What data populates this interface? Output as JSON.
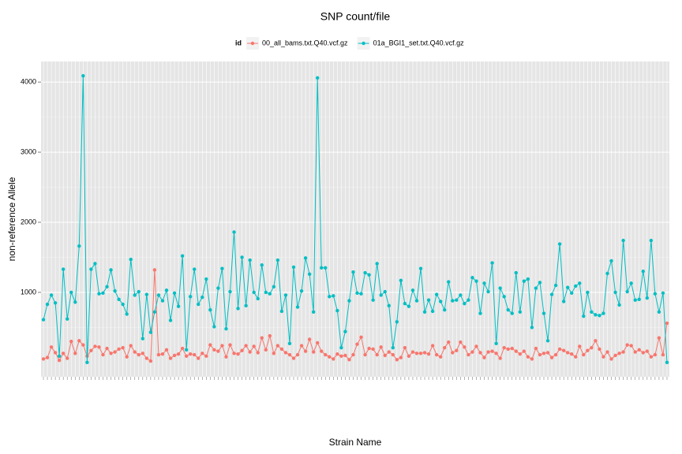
{
  "chart_data": {
    "type": "line",
    "title": "SNP count/file",
    "x_label": "Strain Name",
    "y_label": "non-reference Allele",
    "legend_title": "id",
    "legend_position": "top",
    "grid": true,
    "ylim": [
      -204,
      4294
    ],
    "yticks": [
      1000,
      2000,
      3000,
      4000
    ],
    "categories": [
      null,
      null,
      null,
      null,
      null,
      null,
      null,
      null,
      null,
      null,
      null,
      null,
      null,
      null,
      null,
      null,
      null,
      null,
      null,
      null,
      null,
      null,
      null,
      null,
      null,
      null,
      null,
      null,
      null,
      null,
      null,
      null,
      null,
      null,
      null,
      null,
      null,
      null,
      null,
      null,
      null,
      null,
      null,
      null,
      null,
      null,
      null,
      null,
      null,
      null,
      null,
      null,
      null,
      null,
      null,
      null,
      null,
      null,
      null,
      null,
      null,
      null,
      null,
      null,
      null,
      null,
      null,
      null,
      null,
      null,
      null,
      null,
      null,
      null,
      null,
      null,
      null,
      null,
      null,
      null,
      null,
      null,
      null,
      null,
      null,
      null,
      null,
      null,
      null,
      null,
      null,
      null,
      null,
      null,
      null,
      null,
      null,
      null,
      null,
      null,
      null,
      null,
      null,
      null,
      null,
      null,
      null,
      null,
      null,
      null,
      null,
      null,
      null,
      null,
      null,
      null,
      null,
      null,
      null,
      null,
      null,
      null,
      null,
      null,
      null,
      null,
      null,
      null,
      null,
      null,
      null,
      null,
      null,
      null,
      null,
      null,
      null,
      null,
      null,
      null,
      null,
      null,
      null,
      null,
      null,
      null,
      null,
      null,
      null,
      null,
      null,
      null,
      null,
      null,
      null,
      null,
      null,
      null
    ],
    "series": [
      {
        "name": "00_all_bams.txt.Q40.vcf.gz",
        "color": "#F8766D",
        "values": [
          50,
          70,
          220,
          140,
          30,
          130,
          60,
          300,
          130,
          310,
          250,
          90,
          170,
          230,
          220,
          110,
          200,
          130,
          150,
          190,
          210,
          80,
          240,
          150,
          110,
          130,
          60,
          20,
          1320,
          110,
          120,
          180,
          60,
          100,
          120,
          200,
          90,
          120,
          110,
          60,
          130,
          90,
          250,
          180,
          160,
          240,
          80,
          250,
          130,
          120,
          170,
          240,
          150,
          230,
          140,
          350,
          180,
          380,
          130,
          240,
          190,
          140,
          110,
          60,
          110,
          240,
          160,
          330,
          150,
          280,
          160,
          110,
          80,
          50,
          120,
          90,
          100,
          40,
          110,
          260,
          360,
          110,
          200,
          190,
          110,
          220,
          100,
          150,
          110,
          40,
          70,
          210,
          90,
          150,
          130,
          130,
          140,
          120,
          240,
          110,
          80,
          210,
          290,
          140,
          170,
          290,
          220,
          110,
          150,
          230,
          140,
          70,
          150,
          160,
          130,
          60,
          210,
          190,
          200,
          160,
          120,
          160,
          80,
          50,
          200,
          110,
          130,
          140,
          70,
          110,
          190,
          170,
          140,
          120,
          80,
          230,
          110,
          170,
          210,
          310,
          190,
          80,
          150,
          50,
          100,
          130,
          150,
          250,
          240,
          150,
          180,
          140,
          160,
          80,
          110,
          350,
          110,
          560
        ]
      },
      {
        "name": "01a_BGI1_set.txt.Q40.vcf.gz",
        "color": "#00BFC4",
        "values": [
          610,
          830,
          960,
          850,
          90,
          1330,
          620,
          1000,
          860,
          1660,
          4090,
          0,
          1330,
          1410,
          980,
          990,
          1080,
          1320,
          1020,
          900,
          830,
          690,
          1470,
          960,
          1010,
          340,
          970,
          430,
          720,
          960,
          880,
          1030,
          600,
          990,
          800,
          1520,
          180,
          940,
          1330,
          830,
          930,
          1190,
          750,
          510,
          1060,
          1340,
          480,
          1010,
          1860,
          770,
          1500,
          810,
          1460,
          1000,
          910,
          1390,
          1000,
          980,
          1080,
          1460,
          730,
          960,
          270,
          1360,
          790,
          1020,
          1490,
          1260,
          720,
          4060,
          1350,
          1350,
          940,
          950,
          740,
          210,
          440,
          880,
          1290,
          990,
          980,
          1280,
          1250,
          890,
          1410,
          960,
          1010,
          810,
          210,
          580,
          1170,
          840,
          800,
          1030,
          880,
          1340,
          720,
          890,
          730,
          970,
          870,
          750,
          1150,
          880,
          890,
          960,
          840,
          890,
          1210,
          1160,
          700,
          1130,
          1010,
          1420,
          270,
          1060,
          940,
          750,
          700,
          1280,
          720,
          1160,
          1190,
          500,
          1060,
          1140,
          700,
          310,
          970,
          1100,
          1690,
          870,
          1070,
          990,
          1090,
          1130,
          660,
          1000,
          720,
          680,
          670,
          700,
          1270,
          1450,
          1000,
          820,
          1740,
          1010,
          1130,
          890,
          900,
          1300,
          920,
          1740,
          980,
          720,
          990,
          0
        ]
      }
    ]
  }
}
